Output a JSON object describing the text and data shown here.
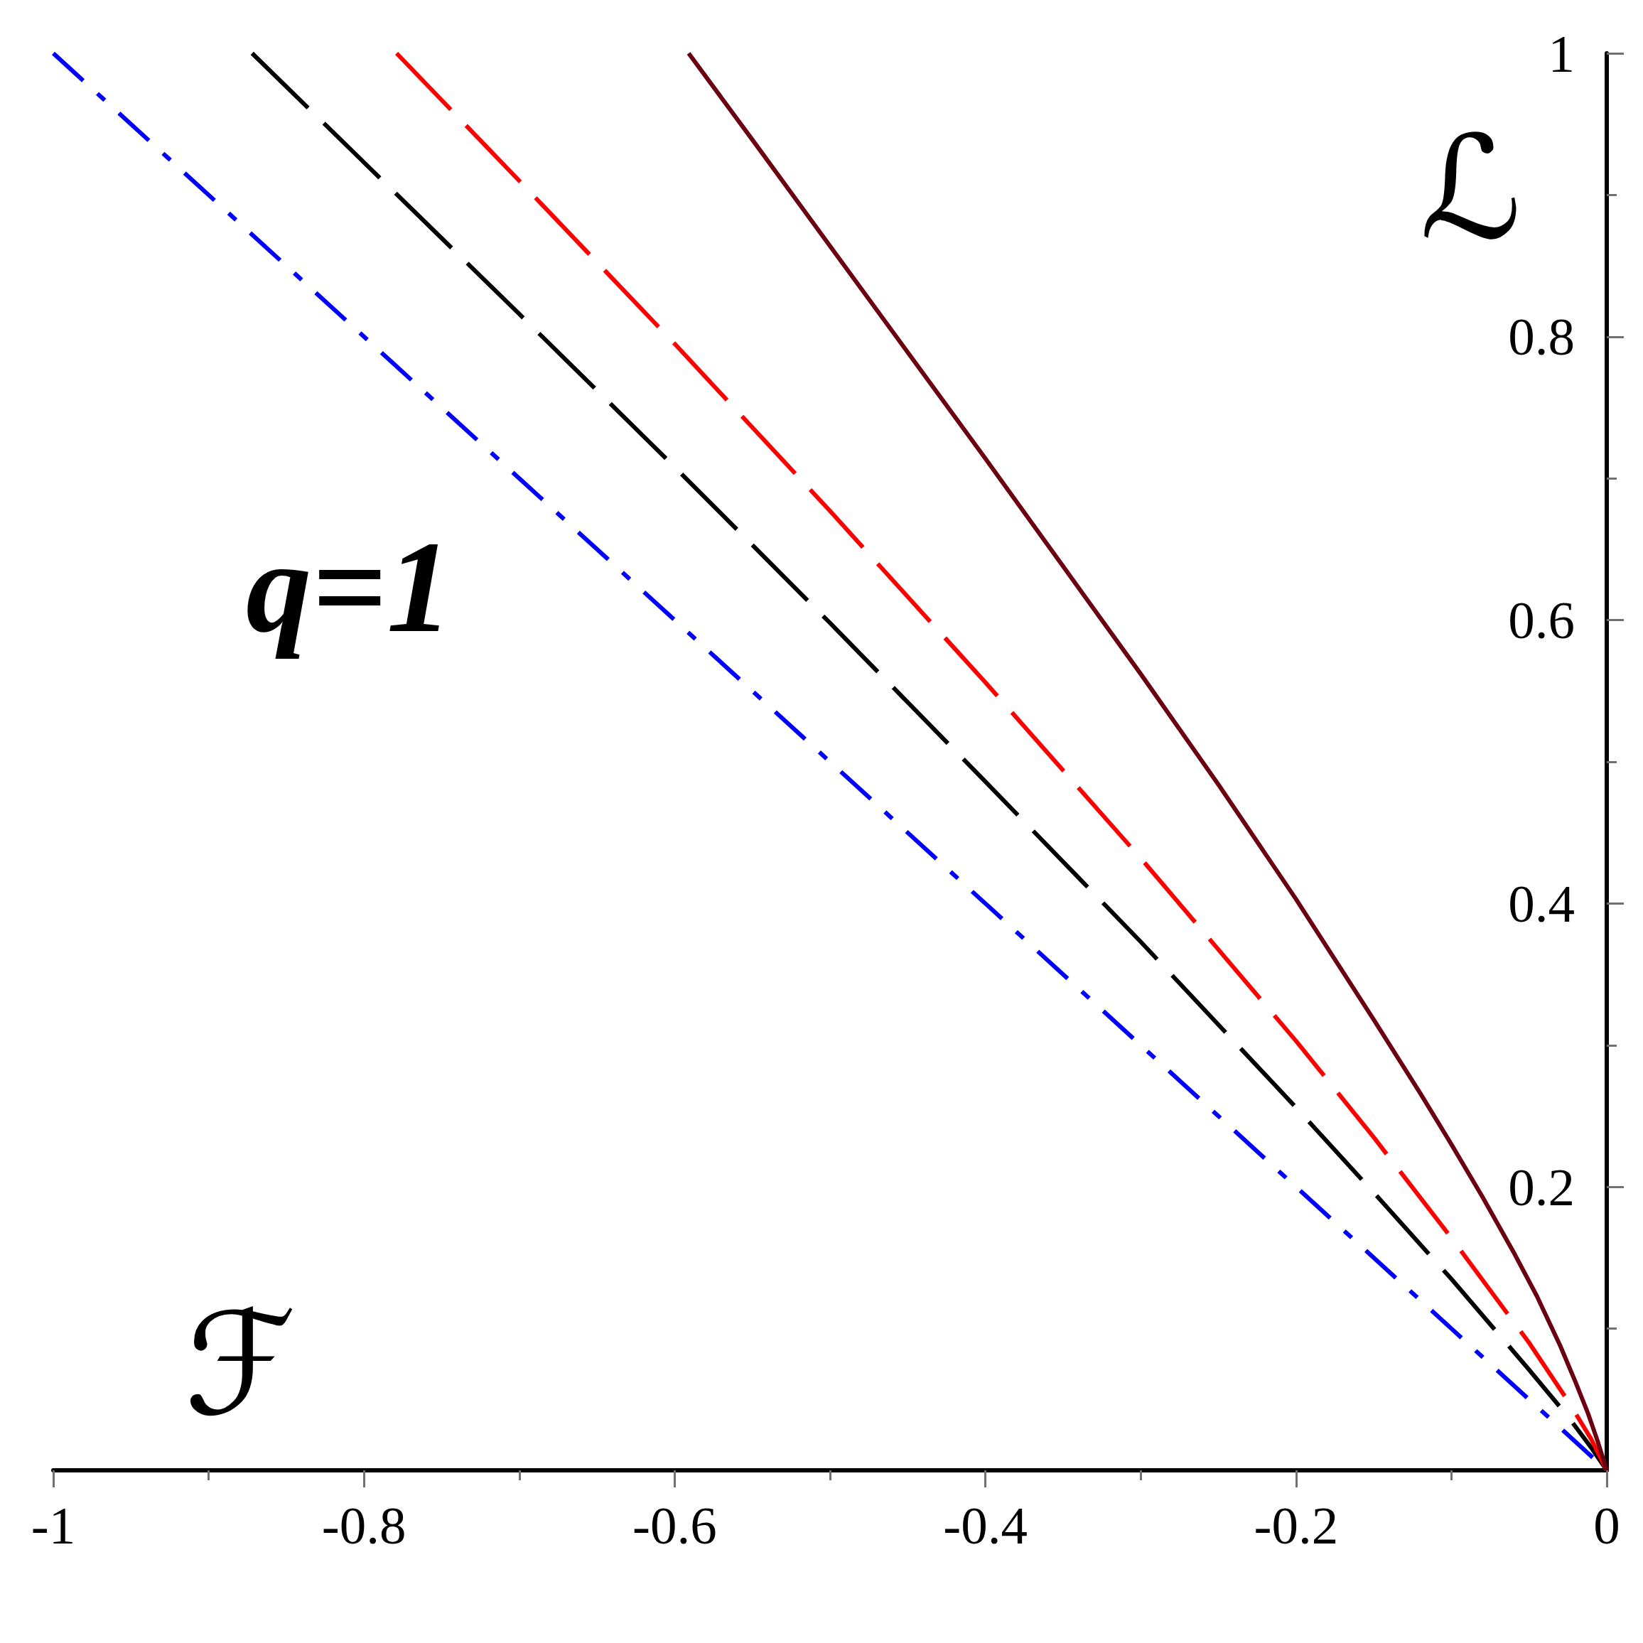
{
  "chart_data": {
    "type": "line",
    "xlabel": "ℱ",
    "ylabel": "ℒ",
    "annotations": [
      "q=1"
    ],
    "xlim": [
      -1,
      0
    ],
    "ylim": [
      0,
      1
    ],
    "xticks": [
      -1,
      {
        "value": -0.9,
        "label": null
      },
      -0.8,
      {
        "value": -0.7,
        "label": null
      },
      -0.6,
      {
        "value": -0.5,
        "label": null
      },
      -0.4,
      {
        "value": -0.3,
        "label": null
      },
      -0.2,
      {
        "value": -0.1,
        "label": null
      },
      0
    ],
    "yticks": [
      {
        "value": 0.1,
        "label": null
      },
      0.2,
      {
        "value": 0.3,
        "label": null
      },
      0.4,
      {
        "value": 0.5,
        "label": null
      },
      0.6,
      {
        "value": 0.7,
        "label": null
      },
      0.8,
      {
        "value": 0.9,
        "label": null
      },
      1
    ],
    "series": [
      {
        "color": "#0000ff",
        "line_style": "dashdot",
        "x": [
          -1,
          -0.9,
          -0.8,
          -0.7,
          -0.6,
          -0.5,
          -0.4,
          -0.3,
          -0.2,
          -0.1,
          0
        ],
        "values": [
          1,
          0.9,
          0.8,
          0.7,
          0.6,
          0.5,
          0.4,
          0.3,
          0.2,
          0.1,
          0
        ]
      },
      {
        "color": "#000000",
        "line_style": "dashed",
        "x": [
          -0.872,
          -0.8,
          -0.7,
          -0.6,
          -0.5,
          -0.4,
          -0.3,
          -0.2,
          -0.15,
          -0.1,
          -0.05,
          -0.025,
          -0.01,
          0
        ],
        "values": [
          1,
          0.923,
          0.816,
          0.708,
          0.598,
          0.486,
          0.373,
          0.256,
          0.196,
          0.135,
          0.071,
          0.038,
          0.016,
          0
        ]
      },
      {
        "color": "#ff0000",
        "line_style": "dashed",
        "x": [
          -0.779,
          -0.7,
          -0.6,
          -0.5,
          -0.4,
          -0.3,
          -0.2,
          -0.15,
          -0.1,
          -0.05,
          -0.025,
          -0.01,
          0
        ],
        "values": [
          1,
          0.91,
          0.795,
          0.677,
          0.556,
          0.432,
          0.303,
          0.235,
          0.164,
          0.09,
          0.049,
          0.022,
          0
        ]
      },
      {
        "color": "#6b0010",
        "line_style": "solid",
        "x": [
          -0.591,
          -0.55,
          -0.5,
          -0.45,
          -0.4,
          -0.35,
          -0.3,
          -0.25,
          -0.2,
          -0.15,
          -0.12,
          -0.1,
          -0.08,
          -0.06,
          -0.045,
          -0.03,
          -0.02,
          -0.012,
          -0.006,
          -0.002,
          0
        ],
        "values": [
          1,
          0.939,
          0.864,
          0.789,
          0.714,
          0.638,
          0.562,
          0.484,
          0.403,
          0.318,
          0.266,
          0.23,
          0.193,
          0.154,
          0.123,
          0.088,
          0.062,
          0.04,
          0.021,
          0.007,
          0
        ]
      }
    ],
    "marker": "none",
    "grid": false
  }
}
